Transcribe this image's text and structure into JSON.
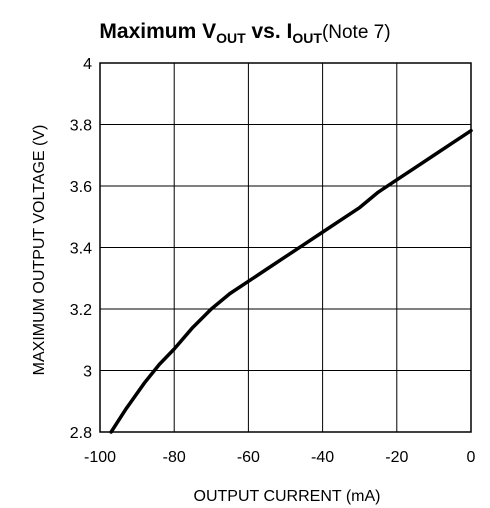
{
  "chart_data": {
    "type": "line",
    "title": {
      "part1": "Maximum V",
      "sub1": "OUT",
      "part2": " vs. I",
      "sub2": "OUT",
      "note": "(Note 7)"
    },
    "xlabel": "OUTPUT CURRENT (mA)",
    "ylabel": "MAXIMUM OUTPUT VOLTAGE (V)",
    "xlim": [
      -100,
      0
    ],
    "ylim": [
      2.8,
      4.0
    ],
    "xticks": [
      -100,
      -80,
      -60,
      -40,
      -20,
      0
    ],
    "yticks": [
      2.8,
      3.0,
      3.2,
      3.4,
      3.6,
      3.8,
      4.0
    ],
    "xtick_labels": [
      "-100",
      "-80",
      "-60",
      "-40",
      "-20",
      "0"
    ],
    "ytick_labels": [
      "2.8",
      "3",
      "3.2",
      "3.4",
      "3.6",
      "3.8",
      "4"
    ],
    "grid": true,
    "series": [
      {
        "color": "#000000",
        "x": [
          -97,
          -93,
          -88,
          -84,
          -80,
          -75,
          -70,
          -65,
          -60,
          -55,
          -50,
          -45,
          -40,
          -35,
          -30,
          -25,
          -20,
          -15,
          -10,
          -5,
          0
        ],
        "y": [
          2.8,
          2.875,
          2.96,
          3.02,
          3.07,
          3.14,
          3.2,
          3.25,
          3.29,
          3.33,
          3.37,
          3.41,
          3.45,
          3.49,
          3.53,
          3.58,
          3.62,
          3.66,
          3.7,
          3.74,
          3.78
        ]
      }
    ]
  }
}
